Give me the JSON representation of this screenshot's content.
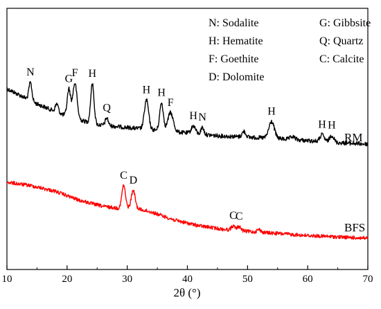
{
  "chart_data": {
    "type": "line",
    "title": "",
    "xlabel": "2θ (°)",
    "ylabel": "",
    "xlim": [
      10,
      70
    ],
    "xticks": [
      "10",
      "20",
      "30",
      "40",
      "50",
      "60",
      "70"
    ],
    "y_axis_ticks": false,
    "grid": false,
    "legend_position": "top-right",
    "legend": [
      "N: Sodalite",
      "G: Gibbsite",
      "H: Hematite",
      "Q: Quartz",
      "F: Goethite",
      "C: Calcite",
      "D: Dolomite"
    ],
    "series": [
      {
        "name": "RM",
        "color": "#000000",
        "baseline": [
          [
            10,
            128
          ],
          [
            15,
            150
          ],
          [
            20,
            168
          ],
          [
            25,
            180
          ],
          [
            30,
            184
          ],
          [
            35,
            188
          ],
          [
            40,
            192
          ],
          [
            45,
            196
          ],
          [
            50,
            198
          ],
          [
            55,
            200
          ],
          [
            60,
            203
          ],
          [
            65,
            206
          ],
          [
            70,
            208
          ]
        ],
        "peaks": [
          {
            "x": 13.9,
            "label": "N",
            "height": 26,
            "width": 0.25
          },
          {
            "x": 18.3,
            "label": "",
            "height": 12,
            "width": 0.25
          },
          {
            "x": 20.3,
            "label": "G",
            "height": 40,
            "width": 0.28
          },
          {
            "x": 21.3,
            "label": "F",
            "height": 51,
            "width": 0.35
          },
          {
            "x": 24.2,
            "label": "H",
            "height": 57,
            "width": 0.28
          },
          {
            "x": 26.6,
            "label": "Q",
            "height": 11,
            "width": 0.25
          },
          {
            "x": 33.2,
            "label": "H",
            "height": 42,
            "width": 0.35
          },
          {
            "x": 35.7,
            "label": "H",
            "height": 40,
            "width": 0.3
          },
          {
            "x": 37.2,
            "label": "F",
            "height": 27,
            "width": 0.45
          },
          {
            "x": 41.0,
            "label": "H",
            "height": 11,
            "width": 0.35
          },
          {
            "x": 42.5,
            "label": "N",
            "height": 10,
            "width": 0.25
          },
          {
            "x": 49.4,
            "label": "",
            "height": 8,
            "width": 0.3
          },
          {
            "x": 54.0,
            "label": "H",
            "height": 24,
            "width": 0.45
          },
          {
            "x": 57.5,
            "label": "",
            "height": 4,
            "width": 0.4
          },
          {
            "x": 62.4,
            "label": "H",
            "height": 10,
            "width": 0.35
          },
          {
            "x": 64.0,
            "label": "H",
            "height": 10,
            "width": 0.35
          }
        ],
        "end_label": "RM"
      },
      {
        "name": "BFS",
        "color": "#ff0000",
        "baseline": [
          [
            10,
            263
          ],
          [
            14,
            268
          ],
          [
            18,
            276
          ],
          [
            22,
            289
          ],
          [
            26,
            298
          ],
          [
            29,
            301
          ],
          [
            31,
            300
          ],
          [
            34,
            306
          ],
          [
            38,
            318
          ],
          [
            42,
            326
          ],
          [
            46,
            331
          ],
          [
            50,
            334
          ],
          [
            55,
            337
          ],
          [
            60,
            340
          ],
          [
            65,
            342
          ],
          [
            70,
            344
          ]
        ],
        "peaks": [
          {
            "x": 29.4,
            "label": "C",
            "height": 33,
            "width": 0.3
          },
          {
            "x": 31.0,
            "label": "D",
            "height": 25,
            "width": 0.32
          },
          {
            "x": 47.6,
            "label": "C",
            "height": 6,
            "width": 0.3
          },
          {
            "x": 48.6,
            "label": "C",
            "height": 6,
            "width": 0.3
          },
          {
            "x": 51.9,
            "label": "",
            "height": 4,
            "width": 0.3
          }
        ],
        "end_label": "BFS"
      }
    ]
  }
}
